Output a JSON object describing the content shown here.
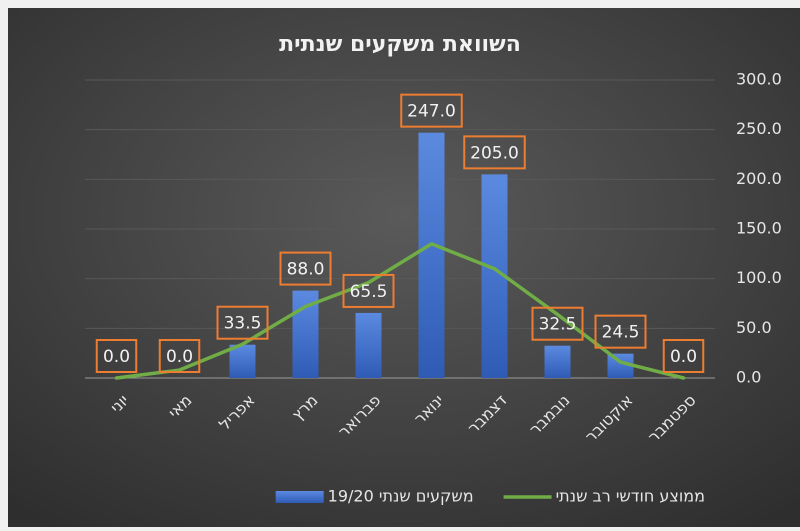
{
  "chart_data": {
    "type": "bar",
    "title": "השוואת משקעים שנתית",
    "categories": [
      "יוני",
      "מאי",
      "אפריל",
      "מרץ",
      "פברואר",
      "ינואר",
      "דצמבר",
      "נובמבר",
      "אוקטובר",
      "ספטמבר"
    ],
    "series": [
      {
        "name": "משקעים שנתי 19/20",
        "type": "bar",
        "color": "#4472c4",
        "values": [
          0,
          0,
          33.5,
          88,
          65.5,
          247,
          205,
          32.5,
          24.5,
          0
        ],
        "value_labels": [
          "0.0",
          "0.0",
          "33.5",
          "88.0",
          "65.5",
          "247.0",
          "205.0",
          "32.5",
          "24.5",
          "0.0"
        ]
      },
      {
        "name": "ממוצע חודשי רב שנתי",
        "type": "line",
        "color": "#70ad47",
        "values": [
          0,
          8,
          34,
          72,
          96,
          135,
          110,
          64,
          16,
          0
        ]
      }
    ],
    "ylim": [
      0,
      300
    ],
    "yticks": [
      {
        "value": 0,
        "label": "0.0"
      },
      {
        "value": 50,
        "label": "50.0"
      },
      {
        "value": 100,
        "label": "100.0"
      },
      {
        "value": 150,
        "label": "150.0"
      },
      {
        "value": 200,
        "label": "200.0"
      },
      {
        "value": 250,
        "label": "250.0"
      },
      {
        "value": 300,
        "label": "300.0"
      }
    ],
    "grid": true,
    "legend": "bottom"
  }
}
